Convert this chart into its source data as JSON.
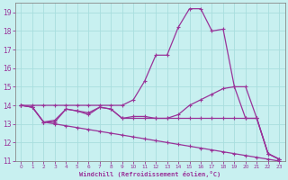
{
  "xlabel": "Windchill (Refroidissement éolien,°C)",
  "background_color": "#c8f0f0",
  "grid_color": "#a8dede",
  "line_color": "#993399",
  "spine_color": "#888888",
  "xlim": [
    -0.5,
    23.5
  ],
  "ylim": [
    11,
    19.5
  ],
  "xticks": [
    0,
    1,
    2,
    3,
    4,
    5,
    6,
    7,
    8,
    9,
    10,
    11,
    12,
    13,
    14,
    15,
    16,
    17,
    18,
    19,
    20,
    21,
    22,
    23
  ],
  "yticks": [
    11,
    12,
    13,
    14,
    15,
    16,
    17,
    18,
    19
  ],
  "curve_peak_x": [
    0,
    1,
    2,
    3,
    4,
    5,
    6,
    7,
    8,
    9,
    10,
    11,
    12,
    13,
    14,
    15,
    16,
    17,
    18,
    19,
    20,
    21,
    22,
    23
  ],
  "curve_peak_y": [
    14.0,
    14.0,
    14.0,
    14.0,
    14.0,
    14.0,
    14.0,
    14.0,
    14.0,
    14.0,
    14.3,
    15.3,
    16.7,
    16.7,
    18.2,
    19.2,
    19.2,
    18.0,
    18.1,
    15.0,
    15.0,
    13.3,
    11.4,
    11.1
  ],
  "curve_mid_x": [
    0,
    1,
    2,
    3,
    4,
    5,
    6,
    7,
    8,
    9,
    10,
    11,
    12,
    13,
    14,
    15,
    16,
    17,
    18,
    19,
    20,
    21,
    22,
    23
  ],
  "curve_mid_y": [
    14.0,
    13.9,
    13.1,
    13.1,
    13.8,
    13.7,
    13.5,
    13.9,
    13.8,
    13.3,
    13.4,
    13.4,
    13.3,
    13.3,
    13.5,
    14.0,
    14.3,
    14.6,
    14.9,
    15.0,
    13.3,
    13.3,
    11.4,
    11.1
  ],
  "curve_flat_x": [
    0,
    1,
    2,
    3,
    4,
    5,
    6,
    7,
    8,
    9,
    10,
    11,
    12,
    13,
    14,
    15,
    16,
    17,
    18,
    19,
    20,
    21,
    22,
    23
  ],
  "curve_flat_y": [
    14.0,
    13.9,
    13.1,
    13.2,
    13.8,
    13.7,
    13.6,
    13.9,
    13.8,
    13.3,
    13.3,
    13.3,
    13.3,
    13.3,
    13.3,
    13.3,
    13.3,
    13.3,
    13.3,
    13.3,
    13.3,
    13.3,
    11.4,
    11.1
  ],
  "curve_dec_x": [
    0,
    1,
    2,
    3,
    4,
    5,
    6,
    7,
    8,
    9,
    10,
    11,
    12,
    13,
    14,
    15,
    16,
    17,
    18,
    19,
    20,
    21,
    22,
    23
  ],
  "curve_dec_y": [
    14.0,
    13.9,
    13.1,
    13.0,
    12.9,
    12.8,
    12.7,
    12.6,
    12.5,
    12.4,
    12.3,
    12.2,
    12.1,
    12.0,
    11.9,
    11.8,
    11.7,
    11.6,
    11.5,
    11.4,
    11.3,
    11.2,
    11.1,
    11.0
  ]
}
